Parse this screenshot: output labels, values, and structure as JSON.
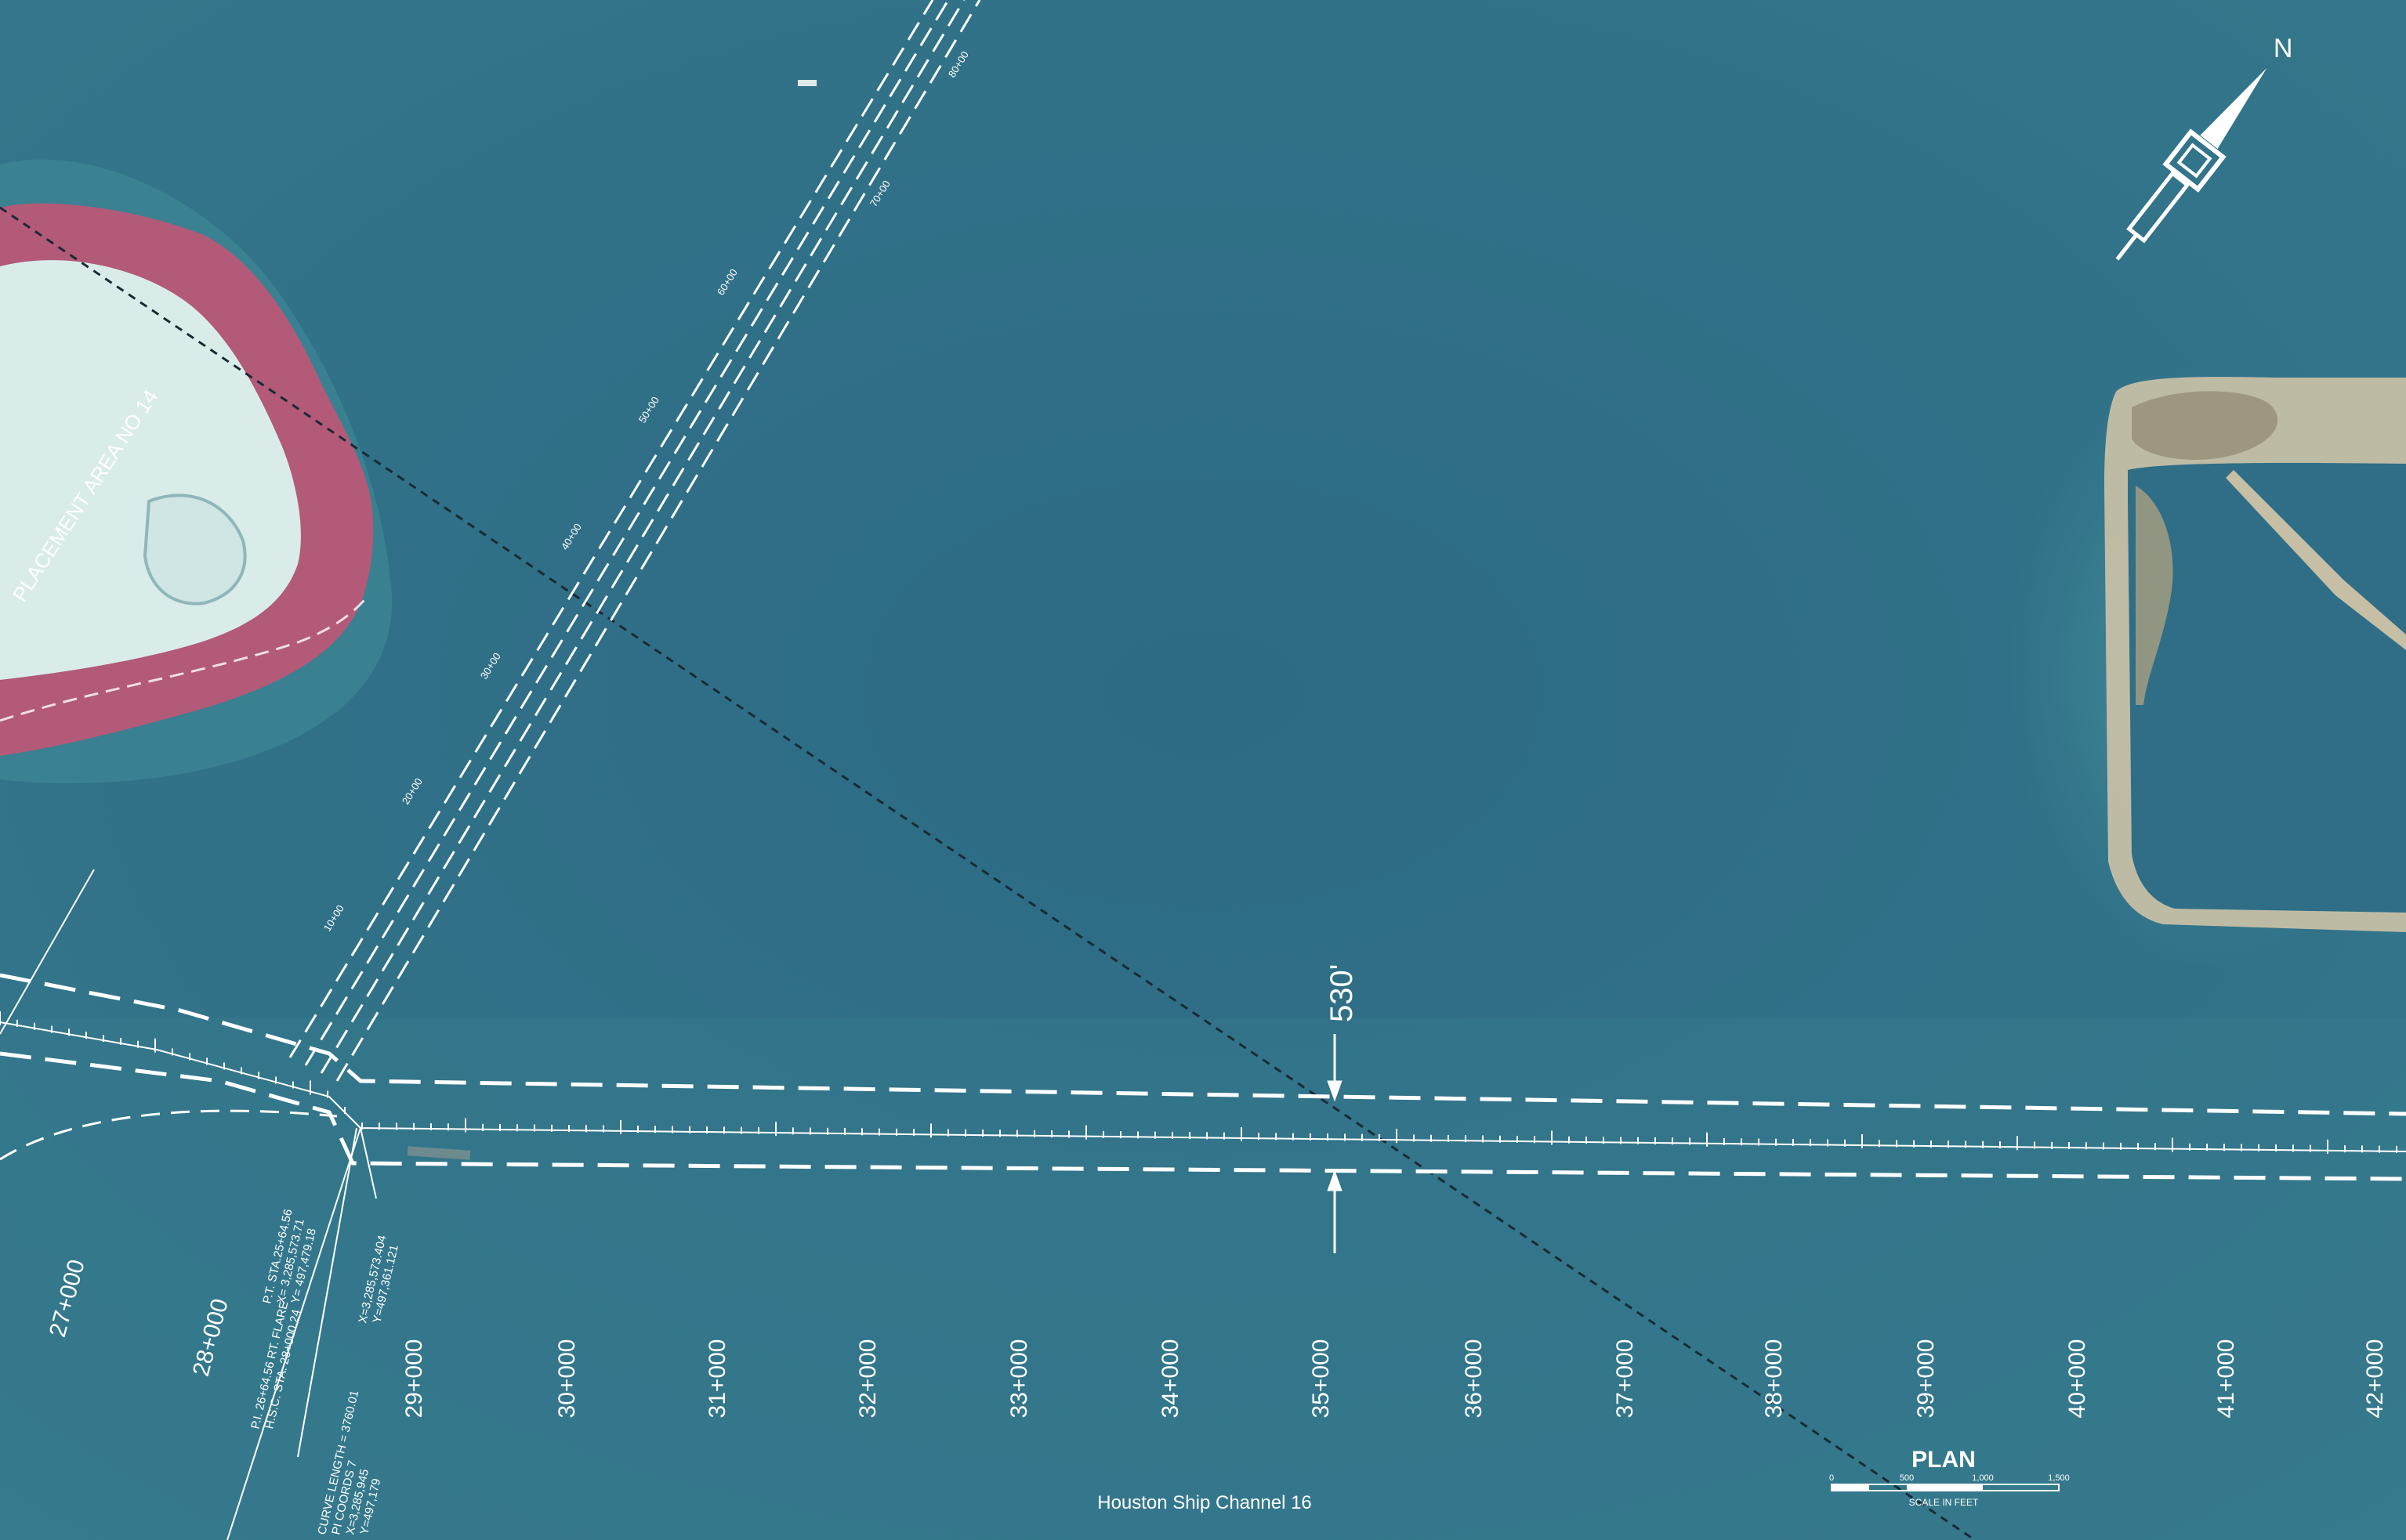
{
  "title": "Houston Ship Channel 16",
  "plan_label": "PLAN",
  "scale_bar": {
    "ticks": [
      "0",
      "500",
      "1,000",
      "1,500"
    ],
    "caption": "SCALE IN FEET"
  },
  "north_arrow_label": "N",
  "channel_width_label": "530'",
  "placement_area_label": "PLACEMENT AREA NO 14",
  "main_stations": [
    "27+000",
    "28+000",
    "29+000",
    "30+000",
    "31+000",
    "32+000",
    "33+000",
    "34+000",
    "35+000",
    "36+000",
    "37+000",
    "38+000",
    "39+000",
    "40+000",
    "41+000",
    "42+000"
  ],
  "pipeline_stations": [
    "10+00",
    "20+00",
    "30+00",
    "40+00",
    "50+00",
    "60+00",
    "70+00",
    "80+00"
  ],
  "pipeline_notes": {
    "pt1": "P.T. STA.25+64.56",
    "pt2": "X= 3,285,573.71",
    "pt3": "Y= 497,479.18",
    "pi1": "P.I. 26+64.56 RT. FLARE",
    "pi2": "H.S.C. STA. 28+000.24",
    "cd1": "X=3,285,573.404",
    "cd2": "Y=497,361.121",
    "cl1": "CURVE LENGTH = 3760.01",
    "cl2": "PI COORDS 7",
    "cl3": "X=3,285,945",
    "cl4": "Y=497,179"
  },
  "colors": {
    "water": "#2f6e86",
    "water_deep": "#2b6680",
    "island_vegetation": "#b25a78",
    "island_sand": "#d9ecea",
    "shallows": "#3f8a97",
    "linework": "#ffffff",
    "reference_line": "#1a2a33"
  }
}
